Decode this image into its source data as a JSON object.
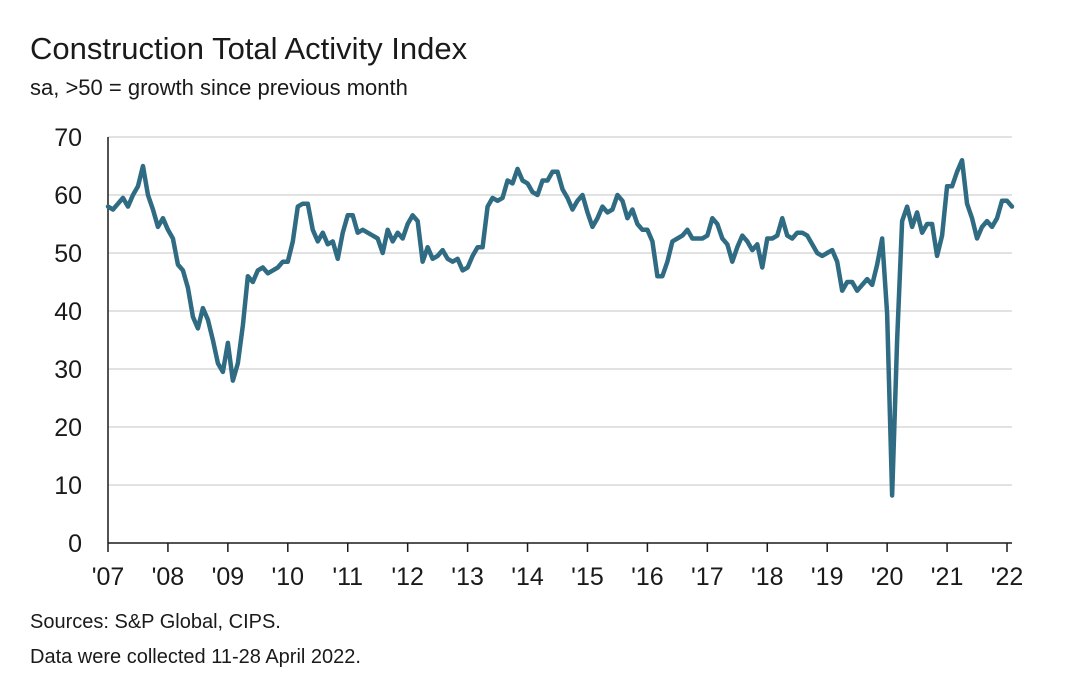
{
  "title": "Construction Total Activity Index",
  "subtitle": "sa, >50 = growth since previous month",
  "sources": "Sources: S&P Global, CIPS.",
  "note": "Data were collected 11-28 April 2022.",
  "colors": {
    "line": "#2f6b82",
    "grid": "#d9d9d9",
    "axis": "#1a1a1a"
  },
  "chart_data": {
    "type": "line",
    "title": "Construction Total Activity Index",
    "subtitle": "sa, >50 = growth since previous month",
    "xlabel": "",
    "ylabel": "",
    "ylim": [
      0,
      70
    ],
    "yticks": [
      0,
      10,
      20,
      30,
      40,
      50,
      60,
      70
    ],
    "xticks": [
      "'07",
      "'08",
      "'09",
      "'10",
      "'11",
      "'12",
      "'13",
      "'14",
      "'15",
      "'16",
      "'17",
      "'18",
      "'19",
      "'20",
      "'21",
      "'22"
    ],
    "grid": true,
    "legend": "none",
    "x_start": "2007-01",
    "x_end": "2022-04",
    "series": [
      {
        "values": [
          58,
          57.5,
          58.5,
          59.5,
          58,
          60,
          61.5,
          65,
          60,
          57.5,
          54.5,
          56,
          54,
          52.5,
          48,
          47,
          44,
          39,
          37,
          40.5,
          38.5,
          35,
          31,
          29.5,
          34.5,
          28,
          31,
          37.5,
          46,
          45,
          47,
          47.5,
          46.5,
          47,
          47.5,
          48.5,
          48.5,
          52,
          58,
          58.5,
          58.5,
          54,
          52,
          53.5,
          51.5,
          52,
          49,
          53.5,
          56.5,
          56.5,
          53.5,
          54,
          53.5,
          53,
          52.5,
          50,
          54,
          52,
          53.5,
          52.5,
          55,
          56.5,
          55.5,
          48.5,
          51,
          49,
          49.5,
          50.5,
          49,
          48.5,
          49,
          47,
          47.5,
          49.5,
          51,
          51,
          58,
          59.5,
          59,
          59.5,
          62.5,
          62,
          64.5,
          62.5,
          62,
          60.5,
          60,
          62.5,
          62.5,
          64,
          64,
          61,
          59.5,
          57.5,
          59,
          60,
          57,
          54.5,
          56,
          58,
          57,
          57.5,
          60,
          59,
          56,
          57.5,
          55,
          54,
          54,
          52,
          46,
          46,
          48.5,
          52,
          52.5,
          53,
          54,
          52.5,
          52.5,
          52.5,
          53,
          56,
          55,
          52.5,
          51.5,
          48.5,
          51,
          53,
          52,
          50.5,
          51.5,
          47.5,
          52.5,
          52.5,
          53,
          56,
          53,
          52.5,
          53.5,
          53.5,
          53,
          51.5,
          50,
          49.5,
          50,
          50.5,
          48.5,
          43.5,
          45,
          45,
          43.5,
          44.5,
          45.5,
          44.5,
          48,
          52.5,
          39.5,
          8.2,
          35,
          55.5,
          58,
          54.5,
          57,
          53.5,
          55,
          55,
          49.5,
          53,
          61.5,
          61.5,
          64,
          66,
          58.5,
          56,
          52.5,
          54.5,
          55.5,
          54.5,
          56,
          59,
          59,
          58
        ]
      }
    ]
  }
}
